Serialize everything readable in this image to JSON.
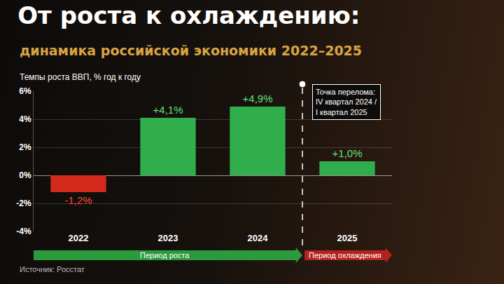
{
  "chart_data": {
    "type": "bar",
    "title": "От роста к охлаждению:",
    "subtitle": "динамика российской экономики 2022–2025",
    "y_label": "Темпы роста ВВП, % год к году",
    "categories": [
      "2022",
      "2023",
      "2024",
      "2025"
    ],
    "values": [
      -1.2,
      4.1,
      4.9,
      1.0
    ],
    "value_labels": [
      "-1,2%",
      "+4,1%",
      "+4,9%",
      "+1,0%"
    ],
    "colors": [
      "#d42a1e",
      "#2fae4b",
      "#2fae4b",
      "#2fae4b"
    ],
    "ylim": [
      -4,
      6
    ],
    "yticks": [
      {
        "value": -4,
        "label": "-4%"
      },
      {
        "value": -2,
        "label": "-2%"
      },
      {
        "value": 0,
        "label": "0%"
      },
      {
        "value": 2,
        "label": "2%"
      },
      {
        "value": 4,
        "label": "4%"
      },
      {
        "value": 6,
        "label": "6%"
      }
    ],
    "grid": true,
    "data_labels": true,
    "annotation": [
      "Точка перелома:",
      "IV квартал 2024 /",
      "I квартал 2025"
    ],
    "periods": [
      {
        "label": "Период роста",
        "categories": [
          "2022",
          "2023",
          "2024"
        ],
        "color": "#2b9a3c"
      },
      {
        "label": "Период охлаждения",
        "categories": [
          "2025"
        ],
        "color": "#b3221c"
      }
    ],
    "source": "Источник: Росстат"
  }
}
